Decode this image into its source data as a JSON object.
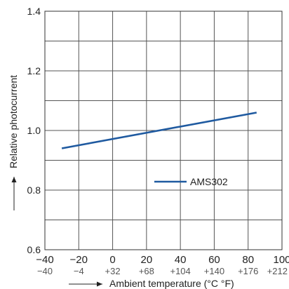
{
  "chart_data": {
    "type": "line",
    "xlabel": "Ambient temperature (°C °F)",
    "ylabel": "Relative photocurrent",
    "x_ticks_celsius": [
      "−40",
      "−20",
      "0",
      "20",
      "40",
      "60",
      "80",
      "100"
    ],
    "x_ticks_fahrenheit": [
      "−40",
      "−4",
      "+32",
      "+68",
      "+104",
      "+140",
      "+176",
      "+212"
    ],
    "y_ticks": [
      "0.6",
      "0.8",
      "1.0",
      "1.2",
      "1.4"
    ],
    "xlim": [
      -40,
      100
    ],
    "ylim": [
      0.6,
      1.4
    ],
    "grid": true,
    "legend_position": "lower-right",
    "series": [
      {
        "name": "AMS302",
        "color": "#1f5aa0",
        "x": [
          -30,
          85
        ],
        "y": [
          0.94,
          1.06
        ]
      }
    ]
  }
}
